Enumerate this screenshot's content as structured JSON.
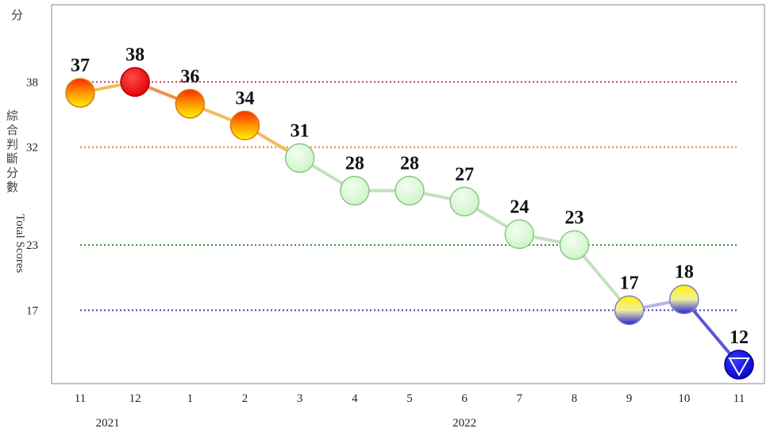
{
  "chart_data": {
    "type": "line",
    "unit_label": "分",
    "ylabel_cjk": "綜合判斷分數",
    "ylabel_en": "Total Scores",
    "categories": [
      "11",
      "12",
      "1",
      "2",
      "3",
      "4",
      "5",
      "6",
      "7",
      "8",
      "9",
      "10",
      "11"
    ],
    "year_labels": [
      {
        "text": "2021",
        "under_index": 0.5
      },
      {
        "text": "2022",
        "under_index": 7
      }
    ],
    "series": [
      {
        "values": [
          37,
          38,
          36,
          34,
          31,
          28,
          28,
          27,
          24,
          23,
          17,
          18,
          12
        ]
      }
    ],
    "point_colors": [
      "yellow-red",
      "red",
      "yellow-red",
      "yellow-red",
      "green",
      "green",
      "green",
      "green",
      "green",
      "green",
      "yellow-blue",
      "yellow-blue",
      "blue"
    ],
    "thresholds": [
      {
        "value": 38,
        "color": "#c0394b"
      },
      {
        "value": 32,
        "color": "#e08a1e"
      },
      {
        "value": 23,
        "color": "#2e8b2e"
      },
      {
        "value": 17,
        "color": "#3a3ac8"
      }
    ],
    "yticks": [
      17,
      23,
      32,
      38
    ],
    "ylim": [
      10,
      44
    ],
    "grid": false,
    "legend": "none"
  }
}
